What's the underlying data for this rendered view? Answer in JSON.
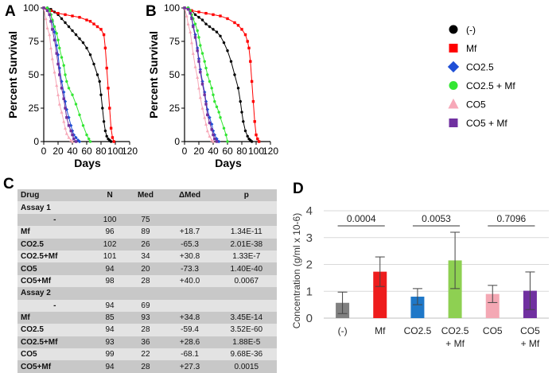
{
  "panels": {
    "A": "A",
    "B": "B",
    "C": "C",
    "D": "D"
  },
  "colors": {
    "control": "#000000",
    "mf": "#ff0000",
    "co25": "#1f4fd6",
    "co25mf": "#33e633",
    "co5": "#f7a8b8",
    "co5mf": "#7030a0",
    "bar_control": "#808080",
    "bar_mf": "#ee1c1c",
    "bar_co25": "#1f78c8",
    "bar_co25mf": "#8ed052",
    "bar_co5": "#f4a8b4",
    "bar_co5mf": "#7030a0"
  },
  "legend": [
    {
      "label": "(-)",
      "color": "#000000",
      "shape": "circle"
    },
    {
      "label": "Mf",
      "color": "#ff0000",
      "shape": "square"
    },
    {
      "label": "CO2.5",
      "color": "#1f4fd6",
      "shape": "diamond"
    },
    {
      "label": "CO2.5 + Mf",
      "color": "#33e633",
      "shape": "circle"
    },
    {
      "label": "CO5",
      "color": "#f7a8b8",
      "shape": "triangle"
    },
    {
      "label": "CO5 + Mf",
      "color": "#7030a0",
      "shape": "square"
    }
  ],
  "chart_data": [
    {
      "panel": "A",
      "type": "line",
      "xlabel": "Days",
      "ylabel": "Percent Survival",
      "xlim": [
        0,
        120
      ],
      "ylim": [
        0,
        100
      ],
      "xticks": [
        0,
        20,
        40,
        60,
        80,
        100,
        120
      ],
      "yticks": [
        0,
        25,
        50,
        75,
        100
      ],
      "series": [
        {
          "name": "(-)",
          "color": "#000000",
          "marker": "circle",
          "x": [
            0,
            5,
            10,
            15,
            20,
            25,
            30,
            35,
            40,
            45,
            50,
            55,
            60,
            65,
            70,
            75,
            78,
            80,
            82,
            84,
            86,
            88,
            90,
            92,
            94
          ],
          "y": [
            100,
            100,
            99,
            97,
            95,
            92,
            89,
            86,
            83,
            80,
            77,
            74,
            70,
            65,
            58,
            50,
            45,
            35,
            25,
            15,
            8,
            4,
            2,
            1,
            0
          ]
        },
        {
          "name": "Mf",
          "color": "#ff0000",
          "marker": "square",
          "x": [
            0,
            10,
            20,
            30,
            40,
            50,
            60,
            65,
            70,
            75,
            80,
            84,
            86,
            88,
            90,
            92,
            94,
            96,
            98
          ],
          "y": [
            100,
            98,
            96,
            95,
            94,
            93,
            91,
            90,
            88,
            86,
            84,
            80,
            70,
            55,
            40,
            25,
            10,
            3,
            0
          ]
        },
        {
          "name": "CO2.5",
          "color": "#1f4fd6",
          "marker": "diamond",
          "x": [
            0,
            5,
            8,
            10,
            12,
            15,
            18,
            20,
            22,
            25,
            28,
            30,
            32,
            35,
            38,
            40,
            42,
            45,
            48,
            50
          ],
          "y": [
            100,
            100,
            98,
            95,
            90,
            82,
            72,
            65,
            55,
            45,
            37,
            30,
            24,
            18,
            12,
            8,
            5,
            3,
            1,
            0
          ]
        },
        {
          "name": "CO2.5 + Mf",
          "color": "#33e633",
          "marker": "circle",
          "x": [
            0,
            5,
            8,
            10,
            12,
            15,
            18,
            20,
            22,
            25,
            28,
            30,
            32,
            35,
            40,
            45,
            50,
            55,
            60,
            63,
            65
          ],
          "y": [
            100,
            100,
            98,
            95,
            91,
            86,
            81,
            76,
            70,
            63,
            57,
            50,
            45,
            40,
            35,
            28,
            20,
            12,
            5,
            2,
            0
          ]
        },
        {
          "name": "CO5",
          "color": "#f7a8b8",
          "marker": "triangle",
          "x": [
            0,
            3,
            5,
            8,
            10,
            12,
            15,
            18,
            20,
            22,
            25,
            28,
            30,
            32,
            35,
            38,
            40
          ],
          "y": [
            100,
            92,
            85,
            80,
            70,
            62,
            52,
            42,
            35,
            28,
            22,
            15,
            10,
            6,
            3,
            1,
            0
          ]
        },
        {
          "name": "CO5 + Mf",
          "color": "#7030a0",
          "marker": "square",
          "x": [
            0,
            5,
            8,
            10,
            12,
            15,
            18,
            20,
            22,
            25,
            28,
            30,
            32,
            35,
            38,
            40,
            42,
            45
          ],
          "y": [
            100,
            98,
            95,
            90,
            84,
            76,
            66,
            58,
            50,
            40,
            32,
            25,
            18,
            12,
            8,
            5,
            2,
            0
          ]
        }
      ]
    },
    {
      "panel": "B",
      "type": "line",
      "xlabel": "Days",
      "ylabel": "Percent Survival",
      "xlim": [
        0,
        120
      ],
      "ylim": [
        0,
        100
      ],
      "xticks": [
        0,
        20,
        40,
        60,
        80,
        100,
        120
      ],
      "yticks": [
        0,
        25,
        50,
        75,
        100
      ],
      "series": [
        {
          "name": "(-)",
          "color": "#000000",
          "marker": "circle",
          "x": [
            0,
            5,
            10,
            15,
            20,
            25,
            30,
            35,
            40,
            45,
            50,
            55,
            60,
            65,
            70,
            75,
            78,
            80,
            82,
            85,
            88,
            90,
            92,
            94
          ],
          "y": [
            100,
            100,
            98,
            95,
            93,
            91,
            88,
            86,
            84,
            82,
            79,
            74,
            68,
            60,
            50,
            40,
            30,
            22,
            15,
            8,
            4,
            2,
            1,
            0
          ]
        },
        {
          "name": "Mf",
          "color": "#ff0000",
          "marker": "square",
          "x": [
            0,
            10,
            20,
            30,
            40,
            50,
            60,
            70,
            75,
            80,
            85,
            88,
            90,
            92,
            94,
            96,
            98,
            100,
            102,
            104
          ],
          "y": [
            100,
            98,
            97,
            96,
            95,
            94,
            92,
            89,
            87,
            84,
            80,
            75,
            70,
            60,
            45,
            30,
            15,
            5,
            2,
            0
          ]
        },
        {
          "name": "CO2.5",
          "color": "#1f4fd6",
          "marker": "diamond",
          "x": [
            0,
            5,
            8,
            10,
            12,
            15,
            18,
            20,
            22,
            25,
            28,
            30,
            32,
            35,
            38,
            40,
            42,
            45,
            48
          ],
          "y": [
            100,
            100,
            97,
            93,
            87,
            80,
            70,
            62,
            54,
            45,
            37,
            30,
            24,
            18,
            13,
            8,
            5,
            2,
            0
          ]
        },
        {
          "name": "CO2.5 + Mf",
          "color": "#33e633",
          "marker": "circle",
          "x": [
            0,
            5,
            8,
            10,
            12,
            15,
            18,
            20,
            22,
            25,
            28,
            30,
            32,
            35,
            38,
            40,
            42,
            45,
            48,
            50,
            55,
            58,
            60
          ],
          "y": [
            100,
            100,
            98,
            95,
            92,
            88,
            83,
            78,
            72,
            66,
            60,
            55,
            50,
            45,
            40,
            35,
            30,
            26,
            22,
            18,
            10,
            5,
            0
          ]
        },
        {
          "name": "CO5",
          "color": "#f7a8b8",
          "marker": "triangle",
          "x": [
            0,
            3,
            5,
            8,
            10,
            12,
            15,
            18,
            20,
            22,
            25,
            28,
            30,
            32,
            35,
            38,
            40
          ],
          "y": [
            100,
            94,
            88,
            82,
            74,
            66,
            56,
            48,
            40,
            33,
            25,
            18,
            13,
            8,
            4,
            1,
            0
          ]
        },
        {
          "name": "CO5 + Mf",
          "color": "#7030a0",
          "marker": "square",
          "x": [
            0,
            5,
            8,
            10,
            12,
            15,
            18,
            20,
            22,
            25,
            28,
            30,
            32,
            35,
            38,
            40,
            42,
            45
          ],
          "y": [
            100,
            99,
            96,
            92,
            86,
            78,
            68,
            60,
            52,
            43,
            35,
            28,
            20,
            14,
            9,
            5,
            2,
            0
          ]
        }
      ]
    },
    {
      "panel": "C",
      "type": "table",
      "columns": [
        "Drug",
        "N",
        "Med",
        "ΔMed",
        "p"
      ],
      "rows": [
        {
          "drug": "Assay 1",
          "n": "",
          "med": "",
          "dmed": "",
          "p": "",
          "assay": true
        },
        {
          "drug": "-",
          "n": "100",
          "med": "75",
          "dmed": "",
          "p": "",
          "center": true
        },
        {
          "drug": "Mf",
          "n": "96",
          "med": "89",
          "dmed": "+18.7",
          "p": "1.34E-11"
        },
        {
          "drug": "CO2.5",
          "n": "102",
          "med": "26",
          "dmed": "-65.3",
          "p": "2.01E-38"
        },
        {
          "drug": "CO2.5+Mf",
          "n": "101",
          "med": "34",
          "dmed": "+30.8",
          "p": "1.33E-7"
        },
        {
          "drug": "CO5",
          "n": "94",
          "med": "20",
          "dmed": "-73.3",
          "p": "1.40E-40"
        },
        {
          "drug": "CO5+Mf",
          "n": "98",
          "med": "28",
          "dmed": "+40.0",
          "p": "0.0067"
        },
        {
          "drug": "Assay 2",
          "n": "",
          "med": "",
          "dmed": "",
          "p": "",
          "assay": true
        },
        {
          "drug": "-",
          "n": "94",
          "med": "69",
          "dmed": "",
          "p": "",
          "center": true
        },
        {
          "drug": "Mf",
          "n": "85",
          "med": "93",
          "dmed": "+34.8",
          "p": "3.45E-14"
        },
        {
          "drug": "CO2.5",
          "n": "94",
          "med": "28",
          "dmed": "-59.4",
          "p": "3.52E-60"
        },
        {
          "drug": "CO2.5+Mf",
          "n": "93",
          "med": "36",
          "dmed": "+28.6",
          "p": "1.88E-5"
        },
        {
          "drug": "CO5",
          "n": "99",
          "med": "22",
          "dmed": "-68.1",
          "p": "9.68E-36"
        },
        {
          "drug": "CO5+Mf",
          "n": "94",
          "med": "28",
          "dmed": "+27.3",
          "p": "0.0015"
        }
      ]
    },
    {
      "panel": "D",
      "type": "bar",
      "ylabel": "Concentration (g/ml x 10-6)",
      "ylim": [
        0,
        4
      ],
      "yticks": [
        0,
        1,
        2,
        3,
        4
      ],
      "categories": [
        "(-)",
        "Mf",
        "CO2.5",
        "CO2.5\n+ Mf",
        "CO5",
        "CO5\n+ Mf"
      ],
      "category_lines": [
        [
          "(-)"
        ],
        [
          "Mf"
        ],
        [
          "CO2.5"
        ],
        [
          "CO2.5",
          "+ Mf"
        ],
        [
          "CO5"
        ],
        [
          "CO5",
          "+ Mf"
        ]
      ],
      "values": [
        0.57,
        1.73,
        0.8,
        2.15,
        0.9,
        1.02
      ],
      "errors": [
        0.4,
        0.55,
        0.3,
        1.05,
        0.32,
        0.7
      ],
      "colors": [
        "#808080",
        "#ee1c1c",
        "#1f78c8",
        "#8ed052",
        "#f4a8b4",
        "#7030a0"
      ],
      "grid": true,
      "annotations": [
        {
          "from": 0,
          "to": 1,
          "text": "0.0004"
        },
        {
          "from": 2,
          "to": 3,
          "text": "0.0053"
        },
        {
          "from": 4,
          "to": 5,
          "text": "0.7096"
        }
      ]
    }
  ]
}
